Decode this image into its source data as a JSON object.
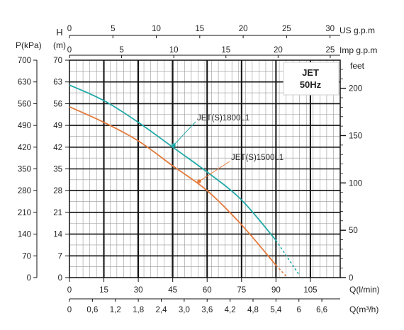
{
  "chart_data": {
    "type": "line",
    "title": "JET",
    "subtitle": "50Hz",
    "axes": {
      "x_flow_lpm": {
        "label": "Q(l/min)",
        "ticks": [
          "0",
          "15",
          "30",
          "45",
          "60",
          "75",
          "90",
          "105"
        ],
        "range": [
          0,
          118
        ]
      },
      "x_flow_m3h": {
        "label": "Q(m³/h)",
        "ticks": [
          "0",
          "0,6",
          "1,2",
          "1,8",
          "2,4",
          "3,0",
          "3,6",
          "4,2",
          "4,8",
          "5,4",
          "6",
          "6,6"
        ]
      },
      "x_us_gpm": {
        "label": "US g.p.m",
        "ticks": [
          "0",
          "5",
          "10",
          "15",
          "20",
          "25",
          "30"
        ]
      },
      "x_imp_gpm": {
        "label": "Imp g.p.m",
        "ticks": [
          "0",
          "5",
          "10",
          "15",
          "20",
          "25"
        ]
      },
      "y_head_m": {
        "label_top": "H",
        "label": "(m)",
        "ticks": [
          "0",
          "7",
          "14",
          "21",
          "28",
          "35",
          "42",
          "49",
          "56",
          "63",
          "70"
        ],
        "range": [
          0,
          70
        ]
      },
      "y_pressure_kpa": {
        "label": "P(kPa)",
        "ticks": [
          "0",
          "70",
          "140",
          "210",
          "280",
          "350",
          "420",
          "490",
          "560",
          "630",
          "700"
        ]
      },
      "y_feet": {
        "label": "feet",
        "ticks": [
          "0",
          "50",
          "100",
          "150",
          "200"
        ]
      }
    },
    "series": [
      {
        "name": "JET(S)1800L1",
        "color": "#20a9a8",
        "x": [
          0,
          15,
          30,
          45,
          60,
          75,
          90,
          100
        ],
        "y": [
          62,
          57,
          50,
          42,
          34,
          25,
          12,
          1
        ]
      },
      {
        "name": "JET(S)1500L1",
        "color": "#e47a3a",
        "x": [
          0,
          15,
          30,
          45,
          60,
          75,
          90,
          95
        ],
        "y": [
          55,
          50,
          44,
          36,
          28,
          17,
          4,
          0
        ]
      }
    ],
    "grid": true,
    "legend": "inline labels with leader lines"
  }
}
